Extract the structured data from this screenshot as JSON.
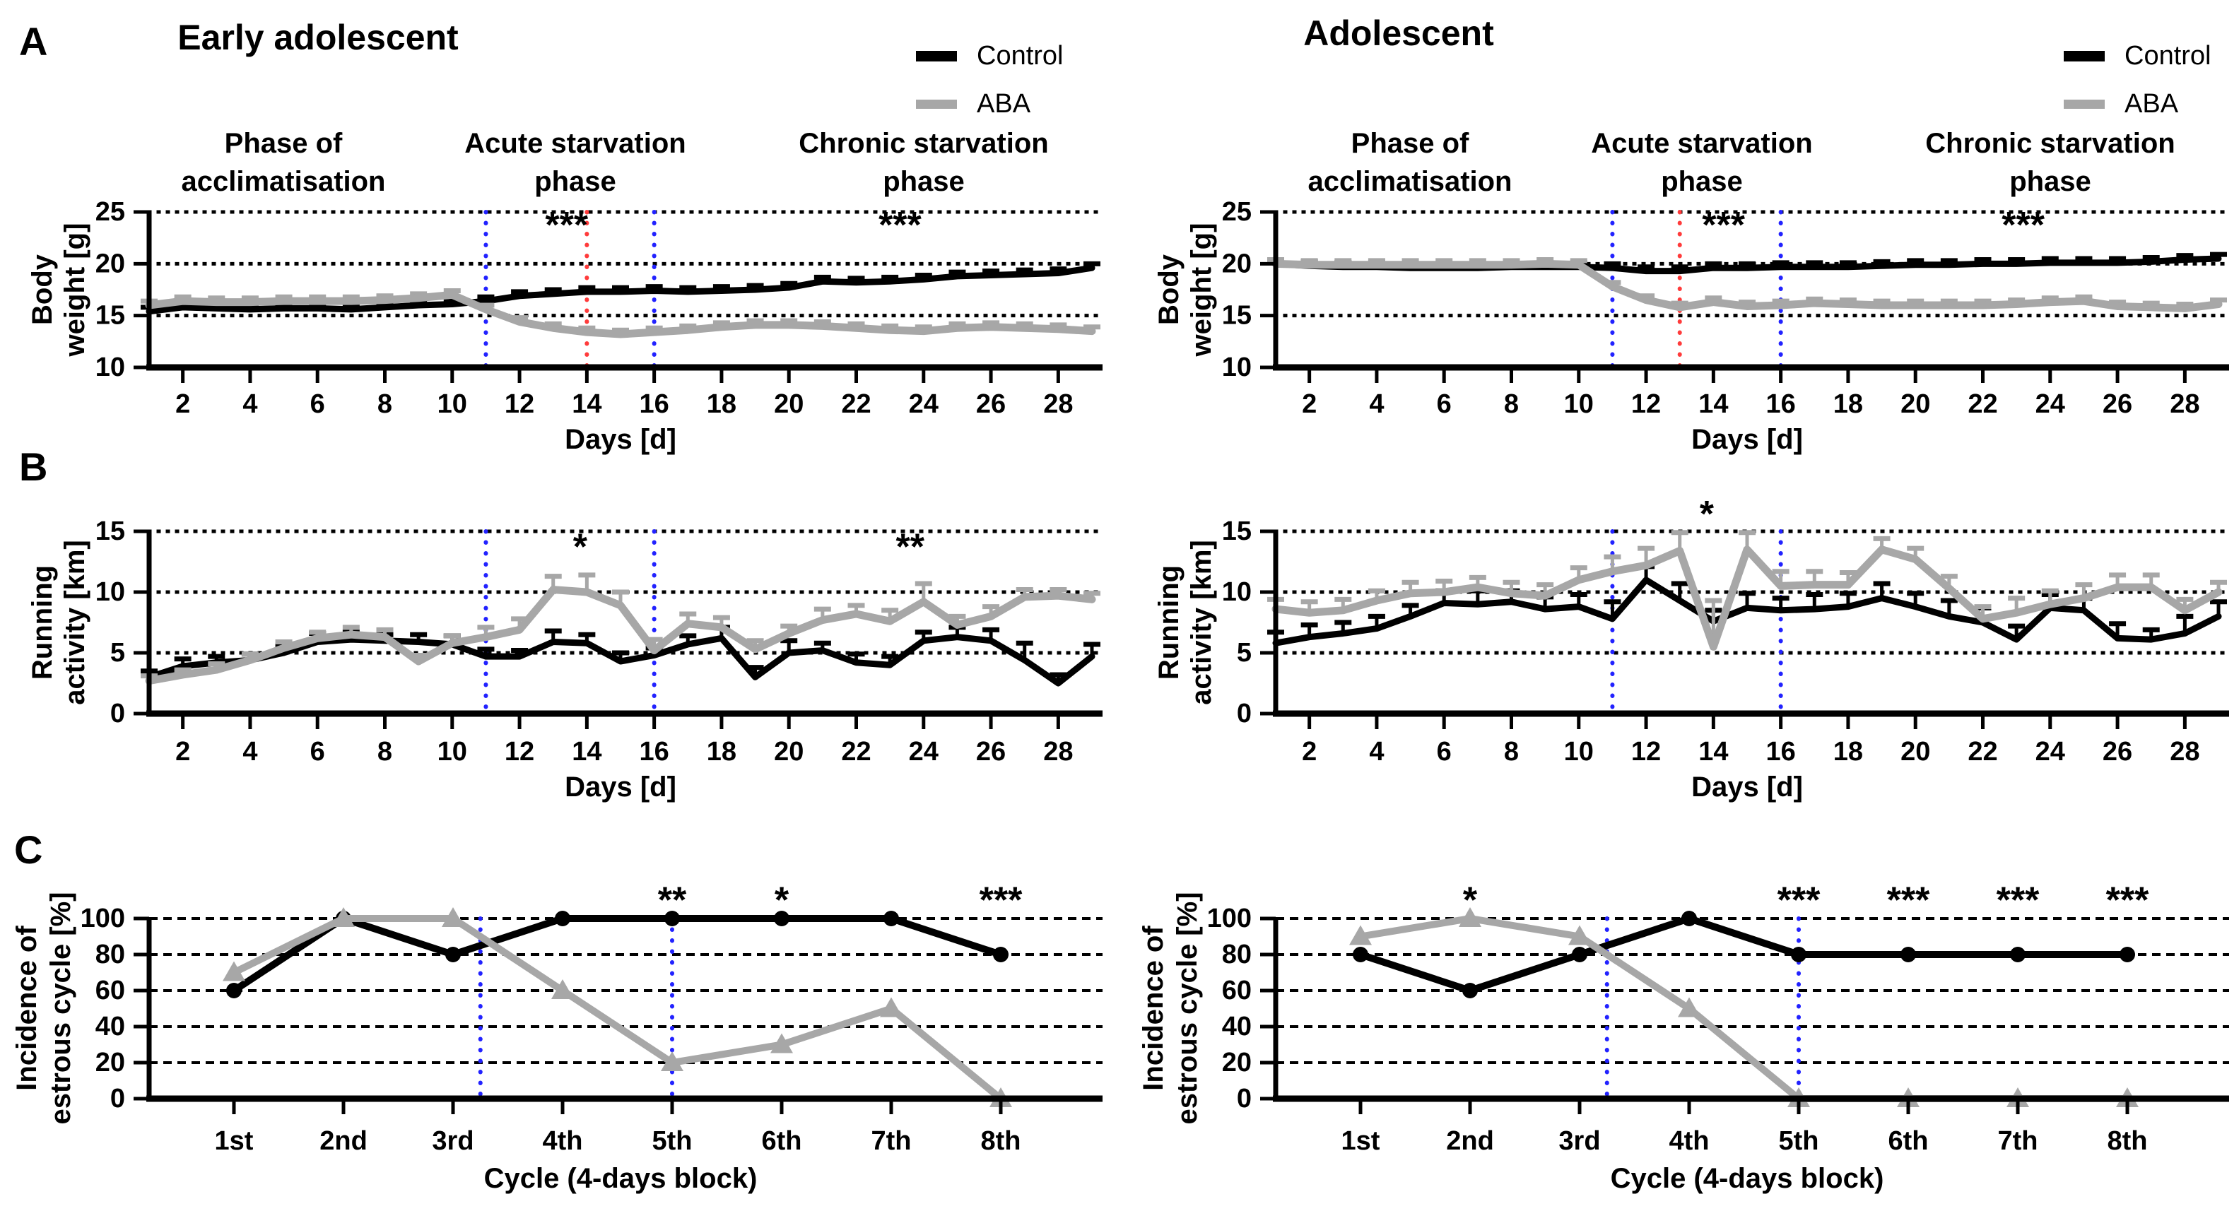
{
  "figure": {
    "panel_labels": [
      "A",
      "B",
      "C"
    ],
    "column_titles": [
      "Early adolescent",
      "Adolescent"
    ],
    "legend": {
      "items": [
        {
          "label": "Control",
          "color": "#000000"
        },
        {
          "label": "ABA",
          "color": "#a7a7a7"
        }
      ]
    },
    "phases": [
      {
        "l1": "Phase of",
        "l2": "acclimatisation"
      },
      {
        "l1": "Acute starvation",
        "l2": "phase"
      },
      {
        "l1": "Chronic starvation",
        "l2": "phase"
      }
    ],
    "colors": {
      "control": "#000000",
      "aba": "#a7a7a7",
      "blue_marker": "#2222ff",
      "red_marker": "#ff3b3b"
    }
  },
  "chart_data": [
    {
      "id": "body-weight-early",
      "row": "A",
      "col": "left",
      "type": "line",
      "column_title": "Early adolescent",
      "ylabel_lines": [
        "Body",
        "weight [g]"
      ],
      "xlabel": "Days [d]",
      "x_range": [
        1,
        29
      ],
      "xticks": [
        2,
        4,
        6,
        8,
        10,
        12,
        14,
        16,
        18,
        20,
        22,
        24,
        26,
        28
      ],
      "ylim": [
        10,
        25
      ],
      "yticks": [
        10,
        15,
        20,
        25
      ],
      "gridlines": [
        15,
        20,
        25
      ],
      "grid_style": "dotted",
      "vlines": [
        {
          "x": 11,
          "color": "#2222ff"
        },
        {
          "x": 14,
          "color": "#ff3b3b"
        },
        {
          "x": 16,
          "color": "#2222ff"
        }
      ],
      "series": [
        {
          "name": "Control",
          "color": "#000000",
          "width": 9,
          "err_const": 0.4,
          "values": [
            15.4,
            15.8,
            15.7,
            15.6,
            15.7,
            15.7,
            15.6,
            15.8,
            16.0,
            16.1,
            16.4,
            16.9,
            17.1,
            17.3,
            17.3,
            17.4,
            17.3,
            17.4,
            17.5,
            17.7,
            18.3,
            18.2,
            18.3,
            18.5,
            18.8,
            18.9,
            19.0,
            19.1,
            19.6
          ]
        },
        {
          "name": "ABA",
          "color": "#a7a7a7",
          "width": 11,
          "err_const": 0.4,
          "values": [
            16.0,
            16.4,
            16.3,
            16.3,
            16.4,
            16.4,
            16.4,
            16.5,
            16.7,
            17.0,
            15.6,
            14.4,
            13.8,
            13.4,
            13.2,
            13.4,
            13.6,
            13.9,
            14.1,
            14.1,
            14.0,
            13.8,
            13.6,
            13.5,
            13.8,
            13.9,
            13.8,
            13.7,
            13.5
          ]
        }
      ],
      "annotations": [
        {
          "text": "***",
          "x": 13.4,
          "y": 23.7
        },
        {
          "text": "***",
          "x": 23.3,
          "y": 23.7
        }
      ]
    },
    {
      "id": "body-weight-adolescent",
      "row": "A",
      "col": "right",
      "type": "line",
      "column_title": "Adolescent",
      "ylabel_lines": [
        "Body",
        "weight [g]"
      ],
      "xlabel": "Days [d]",
      "x_range": [
        1,
        29
      ],
      "xticks": [
        2,
        4,
        6,
        8,
        10,
        12,
        14,
        16,
        18,
        20,
        22,
        24,
        26,
        28
      ],
      "ylim": [
        10,
        25
      ],
      "yticks": [
        10,
        15,
        20,
        25
      ],
      "gridlines": [
        15,
        20,
        25
      ],
      "grid_style": "dotted",
      "vlines": [
        {
          "x": 11,
          "color": "#2222ff"
        },
        {
          "x": 13,
          "color": "#ff3b3b"
        },
        {
          "x": 16,
          "color": "#2222ff"
        }
      ],
      "series": [
        {
          "name": "Control",
          "color": "#000000",
          "width": 9,
          "err_const": 0.4,
          "values": [
            20.0,
            19.8,
            19.7,
            19.7,
            19.6,
            19.6,
            19.6,
            19.7,
            19.7,
            19.7,
            19.6,
            19.3,
            19.3,
            19.6,
            19.6,
            19.7,
            19.7,
            19.7,
            19.8,
            19.9,
            19.9,
            20.0,
            20.0,
            20.1,
            20.1,
            20.1,
            20.2,
            20.4,
            20.5
          ]
        },
        {
          "name": "ABA",
          "color": "#a7a7a7",
          "width": 11,
          "err_const": 0.4,
          "values": [
            20.0,
            19.9,
            19.9,
            19.9,
            19.9,
            19.9,
            19.9,
            19.9,
            20.0,
            19.9,
            17.8,
            16.5,
            15.8,
            16.3,
            15.9,
            16.0,
            16.2,
            16.1,
            16.0,
            16.0,
            16.0,
            16.0,
            16.1,
            16.3,
            16.4,
            15.9,
            15.8,
            15.7,
            16.1
          ]
        }
      ],
      "annotations": [
        {
          "text": "***",
          "x": 14.3,
          "y": 23.7
        },
        {
          "text": "***",
          "x": 23.2,
          "y": 23.7
        }
      ]
    },
    {
      "id": "running-early",
      "row": "B",
      "col": "left",
      "type": "line",
      "column_title": "Early adolescent",
      "ylabel_lines": [
        "Running",
        "activity [km]"
      ],
      "xlabel": "Days [d]",
      "x_range": [
        1,
        29
      ],
      "xticks": [
        2,
        4,
        6,
        8,
        10,
        12,
        14,
        16,
        18,
        20,
        22,
        24,
        26,
        28
      ],
      "ylim": [
        0,
        15
      ],
      "yticks": [
        0,
        5,
        10,
        15
      ],
      "gridlines": [
        5,
        10,
        15
      ],
      "grid_style": "dotted",
      "vlines": [
        {
          "x": 11,
          "color": "#2222ff"
        },
        {
          "x": 16,
          "color": "#2222ff"
        }
      ],
      "series": [
        {
          "name": "Control",
          "color": "#000000",
          "width": 9,
          "values": [
            3.0,
            3.9,
            4.2,
            4.4,
            5.0,
            5.9,
            6.1,
            6.0,
            5.9,
            5.7,
            4.7,
            4.7,
            5.9,
            5.8,
            4.3,
            4.8,
            5.7,
            6.2,
            3.0,
            5.0,
            5.2,
            4.2,
            4.0,
            6.0,
            6.3,
            6.0,
            4.4,
            2.5,
            4.7
          ],
          "err": [
            0.5,
            0.6,
            0.5,
            0.5,
            0.6,
            0.7,
            0.6,
            0.5,
            0.6,
            0.7,
            0.6,
            0.5,
            0.9,
            0.7,
            0.7,
            0.6,
            0.7,
            0.9,
            0.8,
            1.0,
            0.6,
            0.7,
            0.7,
            0.7,
            0.8,
            0.9,
            1.4,
            0.7,
            1.0
          ]
        },
        {
          "name": "ABA",
          "color": "#a7a7a7",
          "width": 11,
          "values": [
            2.7,
            3.2,
            3.6,
            4.4,
            5.4,
            6.2,
            6.5,
            6.3,
            4.3,
            5.8,
            6.3,
            6.9,
            10.2,
            10.0,
            8.9,
            5.2,
            7.4,
            7.1,
            5.3,
            6.6,
            7.7,
            8.2,
            7.6,
            9.2,
            7.3,
            8.0,
            9.6,
            9.7,
            9.4
          ],
          "err": [
            0.4,
            0.4,
            0.5,
            0.5,
            0.5,
            0.5,
            0.6,
            0.6,
            0.5,
            0.6,
            0.8,
            0.9,
            1.1,
            1.4,
            1.1,
            0.9,
            0.8,
            0.8,
            0.7,
            0.6,
            0.9,
            0.7,
            0.9,
            1.5,
            0.7,
            0.8,
            0.6,
            0.5,
            0.5
          ]
        }
      ],
      "annotations": [
        {
          "text": "*",
          "x": 13.8,
          "y": 13.7
        },
        {
          "text": "**",
          "x": 23.6,
          "y": 13.7
        }
      ]
    },
    {
      "id": "running-adolescent",
      "row": "B",
      "col": "right",
      "type": "line",
      "column_title": "Adolescent",
      "ylabel_lines": [
        "Running",
        "activity [km]"
      ],
      "xlabel": "Days [d]",
      "x_range": [
        1,
        29
      ],
      "xticks": [
        2,
        4,
        6,
        8,
        10,
        12,
        14,
        16,
        18,
        20,
        22,
        24,
        26,
        28
      ],
      "ylim": [
        0,
        15
      ],
      "yticks": [
        0,
        5,
        10,
        15
      ],
      "gridlines": [
        5,
        10,
        15
      ],
      "grid_style": "dotted",
      "vlines": [
        {
          "x": 11,
          "color": "#2222ff"
        },
        {
          "x": 16,
          "color": "#2222ff"
        }
      ],
      "series": [
        {
          "name": "Control",
          "color": "#000000",
          "width": 9,
          "values": [
            5.8,
            6.3,
            6.6,
            7.0,
            8.0,
            9.1,
            9.0,
            9.2,
            8.6,
            8.8,
            7.8,
            11.0,
            9.3,
            7.6,
            8.7,
            8.5,
            8.6,
            8.8,
            9.5,
            8.8,
            8.0,
            7.5,
            6.1,
            8.7,
            8.5,
            6.2,
            6.1,
            6.6,
            8.0
          ],
          "err": [
            0.9,
            1.0,
            0.9,
            1.0,
            0.9,
            1.0,
            1.1,
            0.9,
            1.0,
            1.0,
            1.4,
            1.1,
            1.4,
            0.9,
            1.2,
            1.0,
            1.2,
            1.1,
            1.2,
            1.1,
            1.3,
            1.2,
            1.1,
            1.1,
            1.0,
            1.2,
            0.8,
            1.4,
            1.2
          ]
        },
        {
          "name": "ABA",
          "color": "#a7a7a7",
          "width": 11,
          "values": [
            8.6,
            8.3,
            8.5,
            9.3,
            9.9,
            10.0,
            10.4,
            9.9,
            9.7,
            11.0,
            11.7,
            12.2,
            13.4,
            5.5,
            13.5,
            10.5,
            10.6,
            10.6,
            13.5,
            12.7,
            10.3,
            7.8,
            8.3,
            9.0,
            9.5,
            10.4,
            10.4,
            8.5,
            10.0
          ],
          "err": [
            0.8,
            0.9,
            0.9,
            0.8,
            0.9,
            0.9,
            0.8,
            0.9,
            0.9,
            1.0,
            1.2,
            1.4,
            1.5,
            3.8,
            1.4,
            1.2,
            1.1,
            1.0,
            0.9,
            0.9,
            1.0,
            1.0,
            1.2,
            1.1,
            1.1,
            1.0,
            1.0,
            0.9,
            0.8
          ]
        }
      ],
      "annotations": [
        {
          "text": "*",
          "x": 13.8,
          "y": 16.4
        }
      ]
    },
    {
      "id": "estrous-early",
      "row": "C",
      "col": "left",
      "type": "line",
      "column_title": "Early adolescent",
      "ylabel_lines": [
        "Incidence of",
        "estrous cycle [%]"
      ],
      "xlabel": "Cycle (4-days block)",
      "categories": [
        "1st",
        "2nd",
        "3rd",
        "4th",
        "5th",
        "6th",
        "7th",
        "8th"
      ],
      "ylim": [
        0,
        100
      ],
      "yticks": [
        0,
        20,
        40,
        60,
        80,
        100
      ],
      "gridlines": [
        20,
        40,
        60,
        80,
        100
      ],
      "grid_style": "dashed",
      "vlines": [
        {
          "x": 3.25,
          "color": "#2222ff"
        },
        {
          "x": 5,
          "color": "#2222ff"
        }
      ],
      "series": [
        {
          "name": "Control",
          "color": "#000000",
          "width": 10,
          "marker": "circle",
          "values": [
            60,
            100,
            80,
            100,
            100,
            100,
            100,
            80
          ]
        },
        {
          "name": "ABA",
          "color": "#a7a7a7",
          "width": 10,
          "marker": "triangle",
          "values": [
            70,
            100,
            100,
            60,
            20,
            30,
            50,
            0
          ]
        }
      ],
      "annotations": [
        {
          "text": "**",
          "x": 5,
          "y": 110
        },
        {
          "text": "*",
          "x": 6,
          "y": 110
        },
        {
          "text": "***",
          "x": 8,
          "y": 110
        }
      ]
    },
    {
      "id": "estrous-adolescent",
      "row": "C",
      "col": "right",
      "type": "line",
      "column_title": "Adolescent",
      "ylabel_lines": [
        "Incidence of",
        "estrous cycle [%]"
      ],
      "xlabel": "Cycle (4-days block)",
      "categories": [
        "1st",
        "2nd",
        "3rd",
        "4th",
        "5th",
        "6th",
        "7th",
        "8th"
      ],
      "ylim": [
        0,
        100
      ],
      "yticks": [
        0,
        20,
        40,
        60,
        80,
        100
      ],
      "gridlines": [
        20,
        40,
        60,
        80,
        100
      ],
      "grid_style": "dashed",
      "vlines": [
        {
          "x": 3.25,
          "color": "#2222ff"
        },
        {
          "x": 5,
          "color": "#2222ff"
        }
      ],
      "series": [
        {
          "name": "Control",
          "color": "#000000",
          "width": 10,
          "marker": "circle",
          "values": [
            80,
            60,
            80,
            100,
            80,
            80,
            80,
            80
          ]
        },
        {
          "name": "ABA",
          "color": "#a7a7a7",
          "width": 10,
          "marker": "triangle",
          "values": [
            90,
            100,
            90,
            50,
            0,
            0,
            0,
            0
          ]
        }
      ],
      "annotations": [
        {
          "text": "*",
          "x": 2,
          "y": 110
        },
        {
          "text": "***",
          "x": 5,
          "y": 110
        },
        {
          "text": "***",
          "x": 6,
          "y": 110
        },
        {
          "text": "***",
          "x": 7,
          "y": 110
        },
        {
          "text": "***",
          "x": 8,
          "y": 110
        }
      ]
    }
  ]
}
